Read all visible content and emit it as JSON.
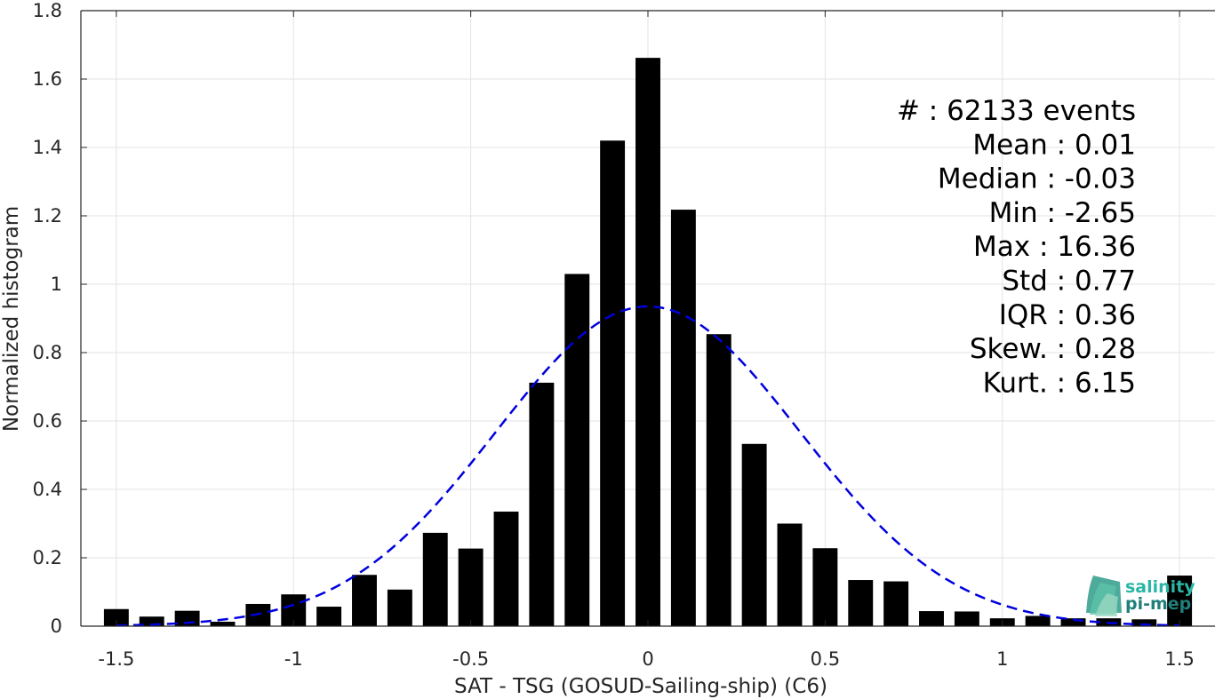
{
  "chart_data": {
    "type": "bar",
    "xlabel": "SAT - TSG (GOSUD-Sailing-ship) (C6)",
    "ylabel": "Normalized histogram",
    "xlim": [
      -1.6,
      1.6
    ],
    "ylim": [
      0,
      1.8
    ],
    "xticks": [
      -1.5,
      -1,
      -0.5,
      0,
      0.5,
      1,
      1.5
    ],
    "xtick_labels": [
      "-1.5",
      "-1",
      "-0.5",
      "0",
      "0.5",
      "1",
      "1.5"
    ],
    "yticks": [
      0,
      0.2,
      0.4,
      0.6,
      0.8,
      1,
      1.2,
      1.4,
      1.6,
      1.8
    ],
    "ytick_labels": [
      "0",
      "0.2",
      "0.4",
      "0.6",
      "0.8",
      "1",
      "1.2",
      "1.4",
      "1.6",
      "1.8"
    ],
    "grid": true,
    "bar_width": 0.07,
    "bar_color": "#000000",
    "bars": {
      "x": [
        -1.5,
        -1.4,
        -1.3,
        -1.2,
        -1.1,
        -1.0,
        -0.9,
        -0.8,
        -0.7,
        -0.6,
        -0.5,
        -0.4,
        -0.3,
        -0.2,
        -0.1,
        0.0,
        0.1,
        0.2,
        0.3,
        0.4,
        0.5,
        0.6,
        0.7,
        0.8,
        0.9,
        1.0,
        1.1,
        1.2,
        1.3,
        1.4,
        1.5
      ],
      "y": [
        0.05,
        0.028,
        0.045,
        0.013,
        0.065,
        0.093,
        0.057,
        0.15,
        0.107,
        0.273,
        0.227,
        0.335,
        0.712,
        1.03,
        1.42,
        1.662,
        1.218,
        0.854,
        0.533,
        0.3,
        0.228,
        0.135,
        0.131,
        0.044,
        0.043,
        0.023,
        0.03,
        0.023,
        0.023,
        0.02,
        0.148
      ]
    },
    "fit": {
      "type": "normal",
      "mean": 0.0,
      "std": 0.43,
      "peak": 0.935,
      "x_range": [
        -1.5,
        1.5
      ],
      "style": "dashed",
      "color": "#0000dd"
    },
    "annotations": [
      {
        "label": "#  : 62133 events"
      },
      {
        "label": "Mean : 0.01"
      },
      {
        "label": "Median : -0.03"
      },
      {
        "label": "Min : -2.65"
      },
      {
        "label": "Max : 16.36"
      },
      {
        "label": "Std : 0.77"
      },
      {
        "label": "IQR : 0.36"
      },
      {
        "label": "Skew. : 0.28"
      },
      {
        "label": "Kurt. : 6.15"
      }
    ]
  },
  "logo": {
    "line1": "salinity",
    "line2": "pi-mep",
    "colors": {
      "text_top": "#2ab6a4",
      "text_bottom": "#1f7f7a",
      "mark": "#3aaa8f"
    }
  }
}
